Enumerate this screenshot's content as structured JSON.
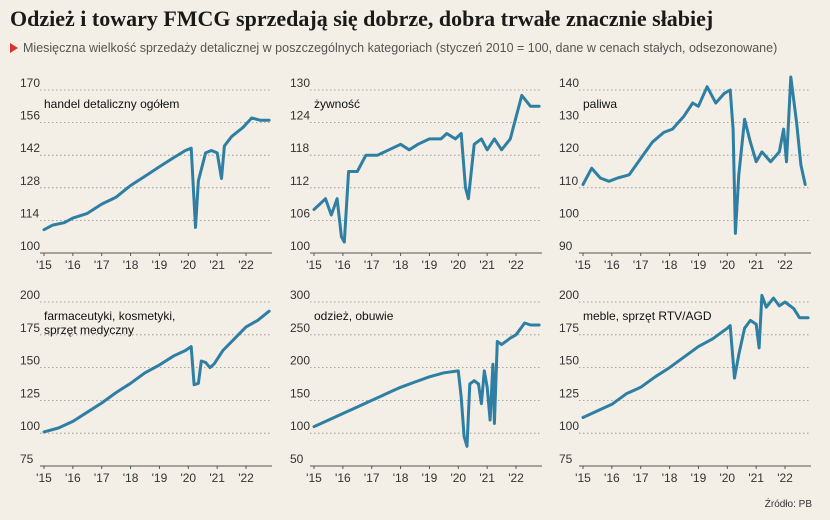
{
  "header": {
    "title": "Odzież i towary FMCG sprzedają się dobrze, dobra trwałe znacznie słabiej",
    "subtitle": "Miesięczna wielkość sprzedaży detalicznej w poszczególnych kategoriach (styczeń 2010 = 100, dane w cenach stałych, odsezonowane)",
    "subtitle_marker_color": "#d9332b"
  },
  "source": "Źródło: PB",
  "line_color": "#2e7fa3",
  "chart_data": [
    {
      "type": "line",
      "title": "handel detaliczny ogółem",
      "xticks": [
        "'15",
        "'16",
        "'17",
        "'18",
        "'19",
        "'20",
        "'21",
        "'22"
      ],
      "xlim": [
        2015,
        2022.9
      ],
      "ylim": [
        100,
        170
      ],
      "yticks": [
        "100",
        "114",
        "128",
        "142",
        "156",
        "170"
      ],
      "points": [
        [
          2015,
          110
        ],
        [
          2015.3,
          112
        ],
        [
          2015.7,
          113
        ],
        [
          2016,
          115
        ],
        [
          2016.5,
          117
        ],
        [
          2017,
          121
        ],
        [
          2017.5,
          124
        ],
        [
          2018,
          129
        ],
        [
          2018.5,
          133
        ],
        [
          2019,
          137
        ],
        [
          2019.5,
          141
        ],
        [
          2019.9,
          144
        ],
        [
          2020.1,
          145
        ],
        [
          2020.25,
          111
        ],
        [
          2020.35,
          131
        ],
        [
          2020.6,
          143
        ],
        [
          2020.8,
          144
        ],
        [
          2021.0,
          143
        ],
        [
          2021.15,
          132
        ],
        [
          2021.25,
          146
        ],
        [
          2021.5,
          150
        ],
        [
          2021.9,
          154
        ],
        [
          2022.2,
          158
        ],
        [
          2022.5,
          157
        ],
        [
          2022.8,
          157
        ]
      ]
    },
    {
      "type": "line",
      "title": "żywność",
      "xticks": [
        "'15",
        "'16",
        "'17",
        "'18",
        "'19",
        "'20",
        "'21",
        "'22"
      ],
      "xlim": [
        2015,
        2022.9
      ],
      "ylim": [
        100,
        130
      ],
      "yticks": [
        "100",
        "106",
        "112",
        "118",
        "124",
        "130"
      ],
      "points": [
        [
          2015,
          108
        ],
        [
          2015.2,
          109
        ],
        [
          2015.4,
          110
        ],
        [
          2015.6,
          107
        ],
        [
          2015.8,
          110
        ],
        [
          2015.95,
          103
        ],
        [
          2016.05,
          102
        ],
        [
          2016.2,
          115
        ],
        [
          2016.5,
          115
        ],
        [
          2016.8,
          118
        ],
        [
          2017.2,
          118
        ],
        [
          2017.6,
          119
        ],
        [
          2018,
          120
        ],
        [
          2018.3,
          119
        ],
        [
          2018.6,
          120
        ],
        [
          2019,
          121
        ],
        [
          2019.4,
          121
        ],
        [
          2019.6,
          122
        ],
        [
          2019.9,
          121
        ],
        [
          2020.1,
          122
        ],
        [
          2020.25,
          112
        ],
        [
          2020.35,
          110
        ],
        [
          2020.55,
          120
        ],
        [
          2020.8,
          121
        ],
        [
          2021.0,
          119
        ],
        [
          2021.25,
          121
        ],
        [
          2021.5,
          119
        ],
        [
          2021.8,
          121
        ],
        [
          2022.0,
          125
        ],
        [
          2022.2,
          129
        ],
        [
          2022.5,
          127
        ],
        [
          2022.8,
          127
        ]
      ]
    },
    {
      "type": "line",
      "title": "paliwa",
      "xticks": [
        "'15",
        "'16",
        "'17",
        "'18",
        "'19",
        "'20",
        "'21",
        "'22"
      ],
      "xlim": [
        2015,
        2022.9
      ],
      "ylim": [
        90,
        140
      ],
      "yticks": [
        "90",
        "100",
        "110",
        "120",
        "130",
        "140"
      ],
      "points": [
        [
          2015,
          111
        ],
        [
          2015.3,
          116
        ],
        [
          2015.6,
          113
        ],
        [
          2015.9,
          112
        ],
        [
          2016.2,
          113
        ],
        [
          2016.6,
          114
        ],
        [
          2017,
          119
        ],
        [
          2017.4,
          124
        ],
        [
          2017.8,
          127
        ],
        [
          2018.1,
          128
        ],
        [
          2018.5,
          132
        ],
        [
          2018.8,
          136
        ],
        [
          2019,
          135
        ],
        [
          2019.3,
          141
        ],
        [
          2019.6,
          136
        ],
        [
          2019.9,
          139
        ],
        [
          2020.1,
          140
        ],
        [
          2020.2,
          128
        ],
        [
          2020.28,
          96
        ],
        [
          2020.4,
          114
        ],
        [
          2020.6,
          131
        ],
        [
          2020.8,
          124
        ],
        [
          2021.0,
          118
        ],
        [
          2021.2,
          121
        ],
        [
          2021.5,
          118
        ],
        [
          2021.8,
          121
        ],
        [
          2021.95,
          128
        ],
        [
          2022.05,
          118
        ],
        [
          2022.2,
          144
        ],
        [
          2022.4,
          130
        ],
        [
          2022.55,
          117
        ],
        [
          2022.7,
          111
        ]
      ]
    },
    {
      "type": "line",
      "title": "farmaceutyki, kosmetyki, sprzęt medyczny",
      "xticks": [
        "'15",
        "'16",
        "'17",
        "'18",
        "'19",
        "'20",
        "'21",
        "'22"
      ],
      "xlim": [
        2015,
        2022.9
      ],
      "ylim": [
        75,
        200
      ],
      "yticks": [
        "75",
        "100",
        "125",
        "150",
        "175",
        "200"
      ],
      "points": [
        [
          2015,
          101
        ],
        [
          2015.5,
          104
        ],
        [
          2016,
          109
        ],
        [
          2016.5,
          116
        ],
        [
          2017,
          123
        ],
        [
          2017.5,
          131
        ],
        [
          2018,
          138
        ],
        [
          2018.5,
          146
        ],
        [
          2019,
          152
        ],
        [
          2019.5,
          159
        ],
        [
          2019.9,
          163
        ],
        [
          2020.1,
          166
        ],
        [
          2020.2,
          137
        ],
        [
          2020.35,
          138
        ],
        [
          2020.45,
          155
        ],
        [
          2020.6,
          154
        ],
        [
          2020.75,
          150
        ],
        [
          2020.9,
          153
        ],
        [
          2021.2,
          163
        ],
        [
          2021.6,
          172
        ],
        [
          2022.0,
          181
        ],
        [
          2022.4,
          186
        ],
        [
          2022.8,
          193
        ]
      ]
    },
    {
      "type": "line",
      "title": "odzież, obuwie",
      "xticks": [
        "'15",
        "'16",
        "'17",
        "'18",
        "'19",
        "'20",
        "'21",
        "'22"
      ],
      "xlim": [
        2015,
        2022.9
      ],
      "ylim": [
        50,
        300
      ],
      "yticks": [
        "50",
        "100",
        "150",
        "200",
        "250",
        "300"
      ],
      "points": [
        [
          2015,
          110
        ],
        [
          2015.5,
          120
        ],
        [
          2016,
          130
        ],
        [
          2016.5,
          140
        ],
        [
          2017,
          150
        ],
        [
          2017.5,
          160
        ],
        [
          2018,
          170
        ],
        [
          2018.5,
          178
        ],
        [
          2019,
          186
        ],
        [
          2019.5,
          192
        ],
        [
          2020.0,
          195
        ],
        [
          2020.1,
          155
        ],
        [
          2020.2,
          95
        ],
        [
          2020.3,
          80
        ],
        [
          2020.4,
          175
        ],
        [
          2020.55,
          180
        ],
        [
          2020.7,
          175
        ],
        [
          2020.8,
          145
        ],
        [
          2020.9,
          195
        ],
        [
          2021.0,
          170
        ],
        [
          2021.1,
          120
        ],
        [
          2021.2,
          205
        ],
        [
          2021.25,
          115
        ],
        [
          2021.35,
          240
        ],
        [
          2021.5,
          235
        ],
        [
          2021.8,
          245
        ],
        [
          2022.0,
          250
        ],
        [
          2022.3,
          268
        ],
        [
          2022.5,
          265
        ],
        [
          2022.8,
          265
        ]
      ]
    },
    {
      "type": "line",
      "title": "meble, sprzęt RTV/AGD",
      "xticks": [
        "'15",
        "'16",
        "'17",
        "'18",
        "'19",
        "'20",
        "'21",
        "'22"
      ],
      "xlim": [
        2015,
        2022.9
      ],
      "ylim": [
        75,
        200
      ],
      "yticks": [
        "75",
        "100",
        "125",
        "150",
        "175",
        "200"
      ],
      "points": [
        [
          2015,
          112
        ],
        [
          2015.5,
          117
        ],
        [
          2016,
          122
        ],
        [
          2016.5,
          130
        ],
        [
          2017,
          135
        ],
        [
          2017.5,
          143
        ],
        [
          2018,
          150
        ],
        [
          2018.5,
          158
        ],
        [
          2019,
          166
        ],
        [
          2019.5,
          172
        ],
        [
          2020.0,
          180
        ],
        [
          2020.1,
          182
        ],
        [
          2020.25,
          142
        ],
        [
          2020.4,
          160
        ],
        [
          2020.6,
          180
        ],
        [
          2020.8,
          186
        ],
        [
          2021.0,
          183
        ],
        [
          2021.1,
          165
        ],
        [
          2021.2,
          205
        ],
        [
          2021.35,
          196
        ],
        [
          2021.6,
          203
        ],
        [
          2021.8,
          197
        ],
        [
          2022.0,
          200
        ],
        [
          2022.3,
          195
        ],
        [
          2022.5,
          188
        ],
        [
          2022.8,
          188
        ]
      ]
    }
  ]
}
